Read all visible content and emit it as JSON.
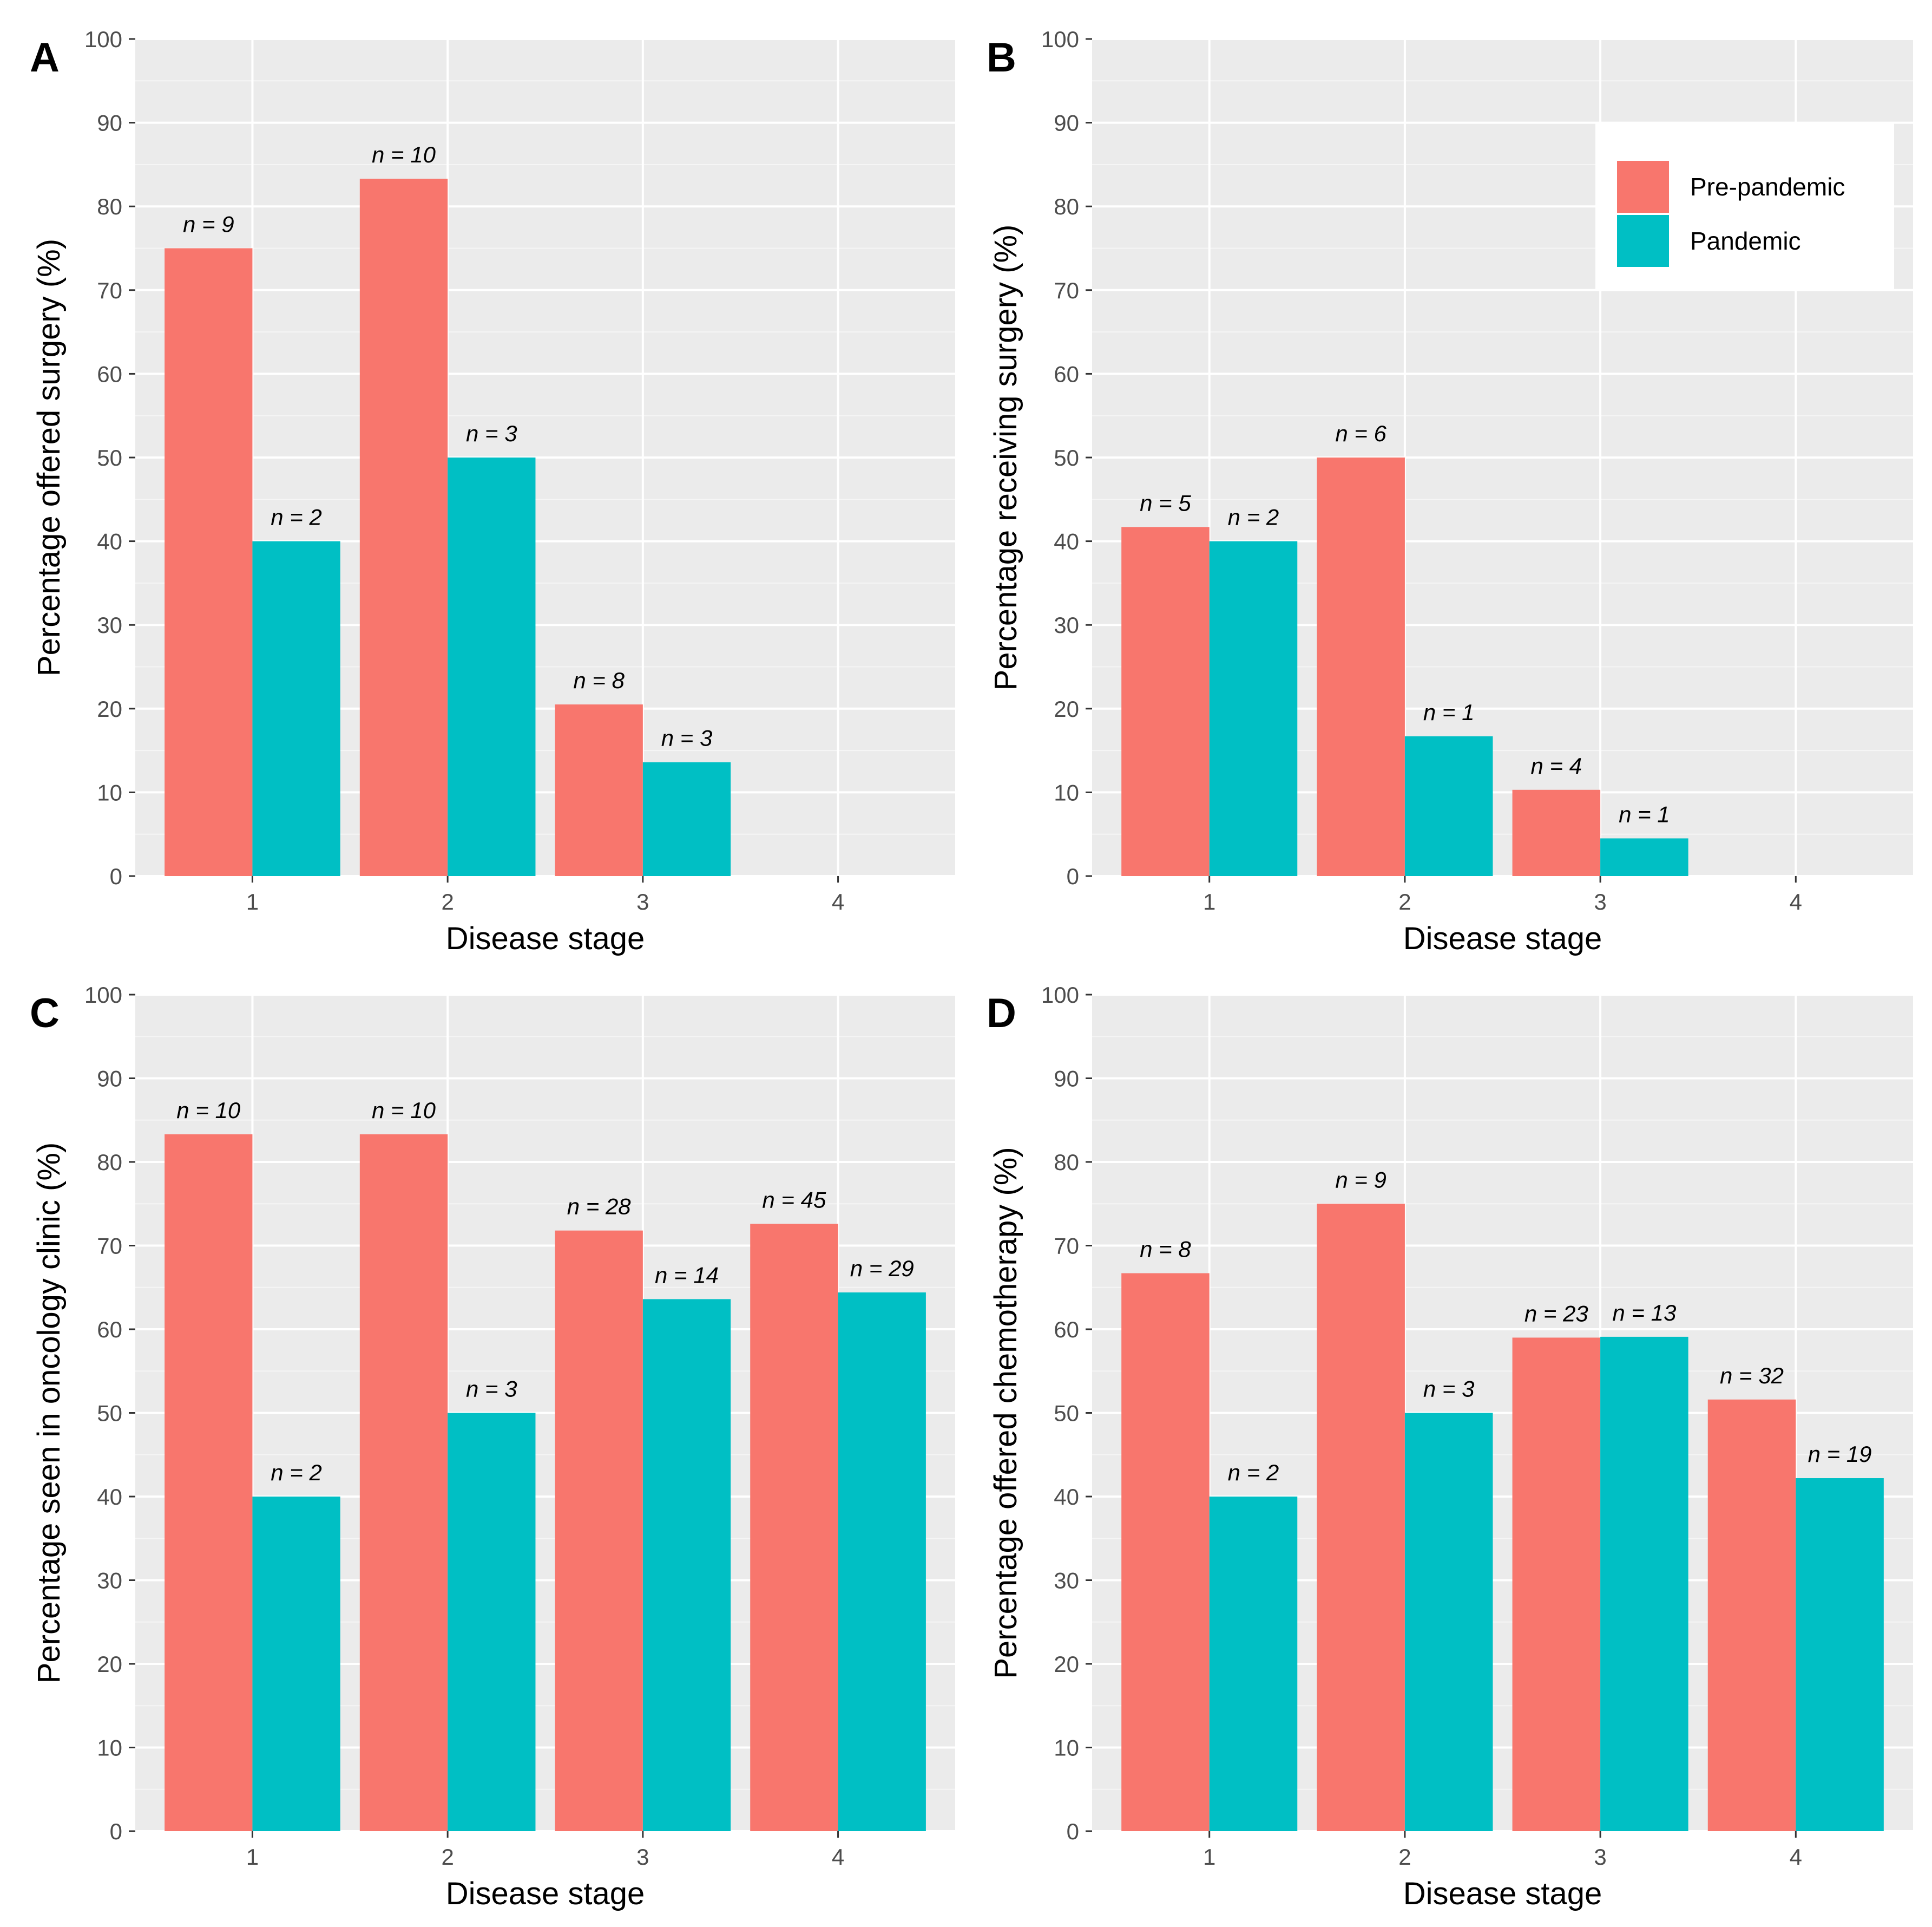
{
  "legend": {
    "entries": [
      {
        "label": "Pre-pandemic",
        "color": "#F8766D"
      },
      {
        "label": "Pandemic",
        "color": "#00BFC4"
      }
    ],
    "panel": "B"
  },
  "chart_data": [
    {
      "type": "bar",
      "panel": "A",
      "xlabel": "Disease stage",
      "ylabel": "Percentage offered surgery (%)",
      "categories": [
        "1",
        "2",
        "3",
        "4"
      ],
      "ylim": [
        0,
        100
      ],
      "yticks": [
        "0",
        "10",
        "20",
        "30",
        "40",
        "50",
        "60",
        "70",
        "80",
        "90",
        "100"
      ],
      "series": [
        {
          "name": "Pre-pandemic",
          "values": [
            75,
            83.3,
            20.5,
            null
          ],
          "labels": [
            "n = 9",
            "n = 10",
            "n = 8",
            null
          ]
        },
        {
          "name": "Pandemic",
          "values": [
            40,
            50,
            13.6,
            null
          ],
          "labels": [
            "n = 2",
            "n = 3",
            "n = 3",
            null
          ]
        }
      ]
    },
    {
      "type": "bar",
      "panel": "B",
      "xlabel": "Disease stage",
      "ylabel": "Percentage receiving surgery (%)",
      "categories": [
        "1",
        "2",
        "3",
        "4"
      ],
      "ylim": [
        0,
        100
      ],
      "yticks": [
        "0",
        "10",
        "20",
        "30",
        "40",
        "50",
        "60",
        "70",
        "80",
        "90",
        "100"
      ],
      "series": [
        {
          "name": "Pre-pandemic",
          "values": [
            41.7,
            50,
            10.3,
            null
          ],
          "labels": [
            "n = 5",
            "n = 6",
            "n = 4",
            null
          ]
        },
        {
          "name": "Pandemic",
          "values": [
            40,
            16.7,
            4.5,
            null
          ],
          "labels": [
            "n = 2",
            "n = 1",
            "n = 1",
            null
          ]
        }
      ]
    },
    {
      "type": "bar",
      "panel": "C",
      "xlabel": "Disease stage",
      "ylabel": "Percentage seen in oncology clinic (%)",
      "categories": [
        "1",
        "2",
        "3",
        "4"
      ],
      "ylim": [
        0,
        100
      ],
      "yticks": [
        "0",
        "10",
        "20",
        "30",
        "40",
        "50",
        "60",
        "70",
        "80",
        "90",
        "100"
      ],
      "series": [
        {
          "name": "Pre-pandemic",
          "values": [
            83.3,
            83.3,
            71.8,
            72.6
          ],
          "labels": [
            "n = 10",
            "n = 10",
            "n = 28",
            "n = 45"
          ]
        },
        {
          "name": "Pandemic",
          "values": [
            40,
            50,
            63.6,
            64.4
          ],
          "labels": [
            "n = 2",
            "n = 3",
            "n = 14",
            "n = 29"
          ]
        }
      ]
    },
    {
      "type": "bar",
      "panel": "D",
      "xlabel": "Disease stage",
      "ylabel": "Percentage offered chemotherapy (%)",
      "categories": [
        "1",
        "2",
        "3",
        "4"
      ],
      "ylim": [
        0,
        100
      ],
      "yticks": [
        "0",
        "10",
        "20",
        "30",
        "40",
        "50",
        "60",
        "70",
        "80",
        "90",
        "100"
      ],
      "series": [
        {
          "name": "Pre-pandemic",
          "values": [
            66.7,
            75,
            59,
            51.6
          ],
          "labels": [
            "n = 8",
            "n = 9",
            "n = 23",
            "n = 32"
          ]
        },
        {
          "name": "Pandemic",
          "values": [
            40,
            50,
            59.1,
            42.2
          ],
          "labels": [
            "n = 2",
            "n = 3",
            "n = 13",
            "n = 19"
          ]
        }
      ]
    }
  ]
}
